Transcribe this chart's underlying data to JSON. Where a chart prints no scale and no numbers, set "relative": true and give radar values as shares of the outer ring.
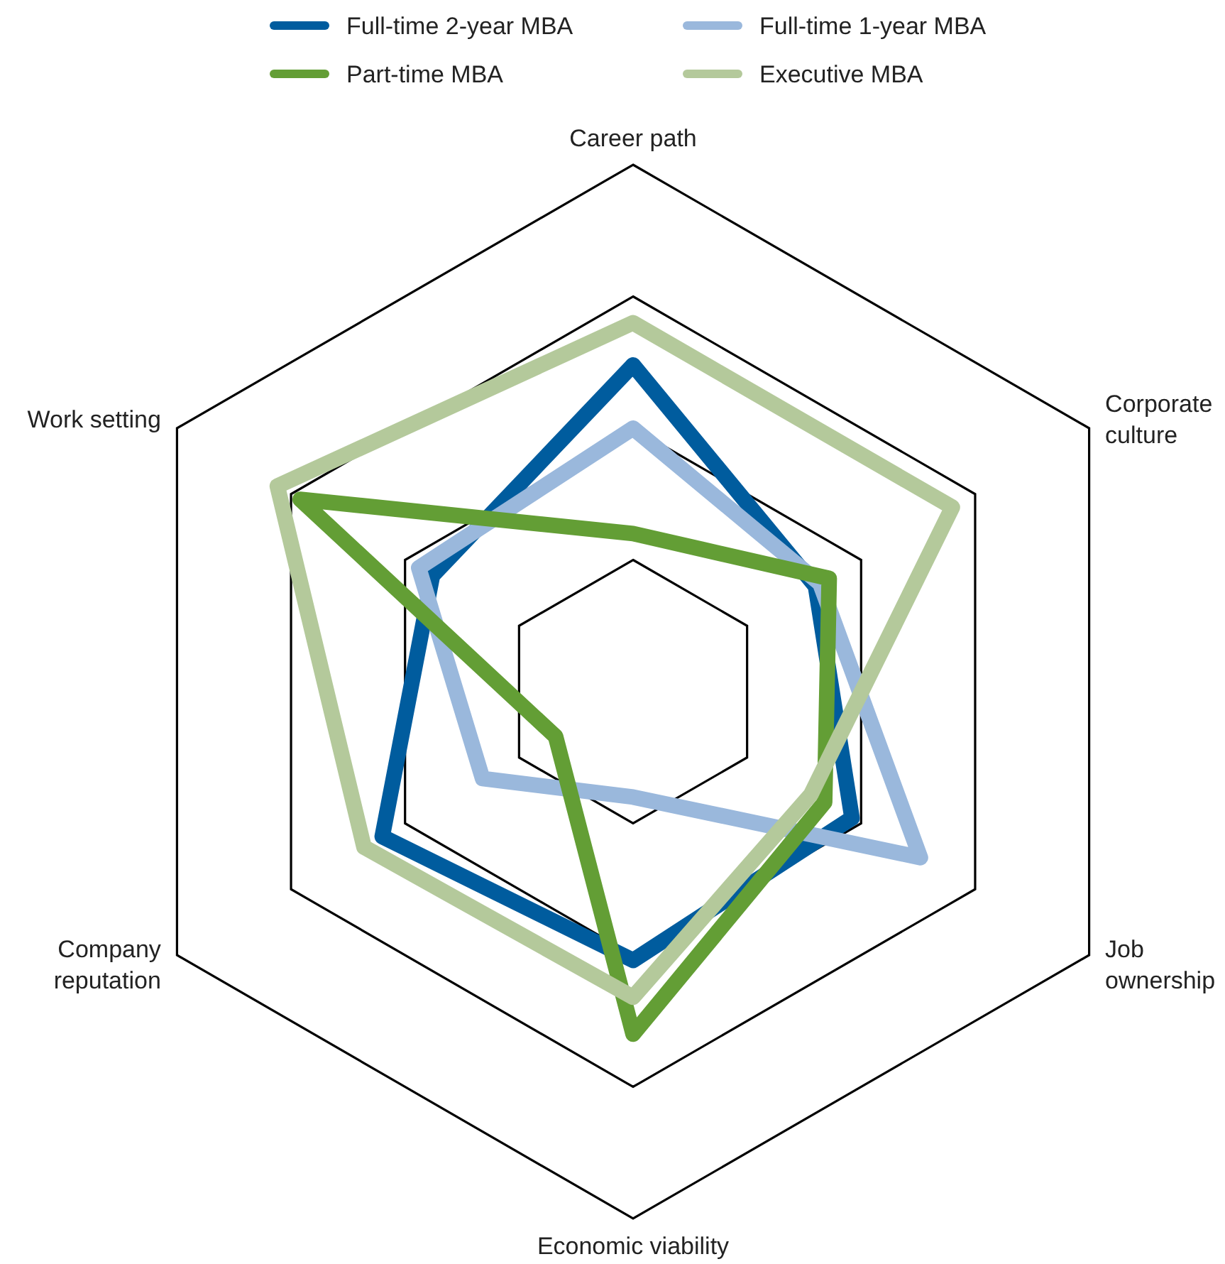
{
  "chart_data": {
    "type": "radar",
    "categories": [
      "Career path",
      "Corporate culture",
      "Job ownership",
      "Economic viability",
      "Company reputation",
      "Work setting"
    ],
    "relative": true,
    "grid": true,
    "legend": "top",
    "line_style": "solid",
    "series": [
      {
        "name": "Full-time 2-year MBA",
        "color": "#005c9e",
        "values": [
          0.62,
          0.4,
          0.48,
          0.51,
          0.55,
          0.44
        ]
      },
      {
        "name": "Full-time 1-year MBA",
        "color": "#9ab8dc",
        "values": [
          0.5,
          0.41,
          0.63,
          0.2,
          0.33,
          0.47
        ]
      },
      {
        "name": "Part-time MBA",
        "color": "#639e35",
        "values": [
          0.3,
          0.43,
          0.42,
          0.65,
          0.17,
          0.73
        ]
      },
      {
        "name": "Executive MBA",
        "color": "#b4c99b",
        "values": [
          0.7,
          0.7,
          0.39,
          0.58,
          0.59,
          0.78
        ]
      }
    ]
  }
}
